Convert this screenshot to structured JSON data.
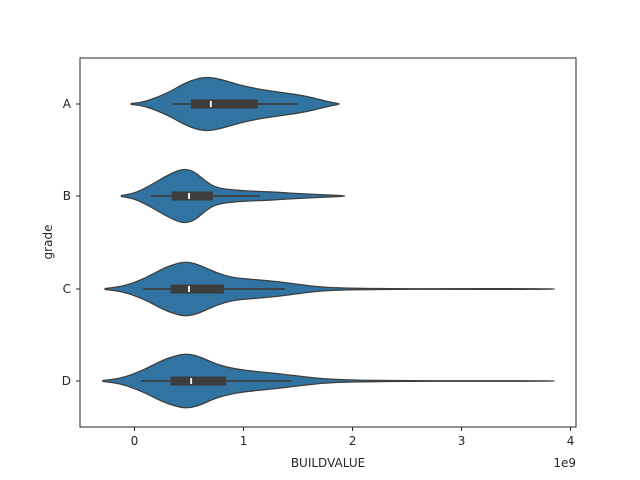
{
  "chart_data": {
    "type": "violin",
    "orientation": "horizontal",
    "xlabel": "BUILDVALUE",
    "ylabel": "grade",
    "x_offset_label": "1e9",
    "xlim": [
      -0.5,
      4.05
    ],
    "x_unit_multiplier": 1000000000,
    "x_ticks": [
      0,
      1,
      2,
      3,
      4
    ],
    "x_tick_labels": [
      "0",
      "1",
      "2",
      "3",
      "4"
    ],
    "categories": [
      "A",
      "B",
      "C",
      "D"
    ],
    "fill_color": "#3274a1",
    "edge_color": "#3d3d3d",
    "box_color": "#3d3d3d",
    "median_color": "#ffffff",
    "grid": false,
    "violins": [
      {
        "category": "A",
        "kde_range": [
          -0.03,
          1.88
        ],
        "box": {
          "whisker_low": 0.35,
          "q1": 0.52,
          "median": 0.7,
          "q3": 1.13,
          "whisker_high": 1.5
        },
        "profile": [
          [
            -0.03,
            0.02
          ],
          [
            0.1,
            0.08
          ],
          [
            0.3,
            0.4
          ],
          [
            0.45,
            0.75
          ],
          [
            0.58,
            0.95
          ],
          [
            0.68,
            1.0
          ],
          [
            0.8,
            0.9
          ],
          [
            0.95,
            0.72
          ],
          [
            1.1,
            0.58
          ],
          [
            1.3,
            0.45
          ],
          [
            1.5,
            0.34
          ],
          [
            1.65,
            0.22
          ],
          [
            1.78,
            0.08
          ],
          [
            1.88,
            0.01
          ]
        ]
      },
      {
        "category": "B",
        "kde_range": [
          -0.12,
          1.93
        ],
        "box": {
          "whisker_low": 0.15,
          "q1": 0.34,
          "median": 0.5,
          "q3": 0.72,
          "whisker_high": 1.15
        },
        "profile": [
          [
            -0.12,
            0.02
          ],
          [
            0.0,
            0.1
          ],
          [
            0.15,
            0.4
          ],
          [
            0.28,
            0.72
          ],
          [
            0.4,
            0.95
          ],
          [
            0.47,
            1.0
          ],
          [
            0.55,
            0.9
          ],
          [
            0.65,
            0.55
          ],
          [
            0.75,
            0.3
          ],
          [
            0.95,
            0.2
          ],
          [
            1.15,
            0.17
          ],
          [
            1.35,
            0.13
          ],
          [
            1.55,
            0.08
          ],
          [
            1.75,
            0.04
          ],
          [
            1.93,
            0.01
          ]
        ]
      },
      {
        "category": "C",
        "kde_range": [
          -0.27,
          3.85
        ],
        "box": {
          "whisker_low": 0.08,
          "q1": 0.33,
          "median": 0.5,
          "q3": 0.82,
          "whisker_high": 1.38
        },
        "profile": [
          [
            -0.27,
            0.02
          ],
          [
            -0.1,
            0.1
          ],
          [
            0.1,
            0.4
          ],
          [
            0.28,
            0.8
          ],
          [
            0.42,
            0.98
          ],
          [
            0.5,
            1.0
          ],
          [
            0.6,
            0.88
          ],
          [
            0.75,
            0.6
          ],
          [
            0.9,
            0.42
          ],
          [
            1.1,
            0.35
          ],
          [
            1.3,
            0.28
          ],
          [
            1.5,
            0.17
          ],
          [
            1.75,
            0.05
          ],
          [
            2.2,
            0.015
          ],
          [
            3.0,
            0.01
          ],
          [
            3.5,
            0.02
          ],
          [
            3.85,
            0.005
          ]
        ]
      },
      {
        "category": "D",
        "kde_range": [
          -0.29,
          3.85
        ],
        "box": {
          "whisker_low": 0.06,
          "q1": 0.33,
          "median": 0.52,
          "q3": 0.84,
          "whisker_high": 1.44
        },
        "profile": [
          [
            -0.29,
            0.02
          ],
          [
            -0.12,
            0.1
          ],
          [
            0.08,
            0.4
          ],
          [
            0.27,
            0.8
          ],
          [
            0.42,
            0.98
          ],
          [
            0.5,
            1.0
          ],
          [
            0.6,
            0.9
          ],
          [
            0.75,
            0.62
          ],
          [
            0.92,
            0.45
          ],
          [
            1.1,
            0.36
          ],
          [
            1.3,
            0.28
          ],
          [
            1.5,
            0.18
          ],
          [
            1.8,
            0.05
          ],
          [
            2.3,
            0.015
          ],
          [
            3.2,
            0.01
          ],
          [
            3.85,
            0.005
          ]
        ]
      }
    ]
  }
}
